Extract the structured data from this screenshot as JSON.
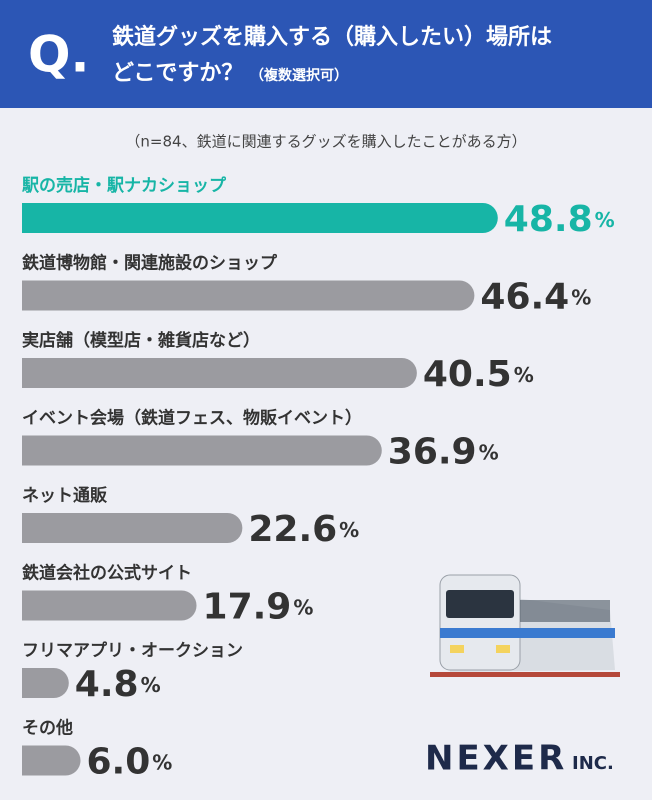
{
  "chart_data": {
    "type": "bar",
    "question_mark": "Q.",
    "title": [
      "鉄道グッズを購入する（購入したい）場所は",
      "どこですか？"
    ],
    "title_note": "（複数選択可）",
    "subtitle": "（n=84、鉄道に関連するグッズを購入したことがある方）",
    "categories": [
      "駅の売店・駅ナカショップ",
      "鉄道博物館・関連施設のショップ",
      "実店舗（模型店・雑貨店など）",
      "イベント会場（鉄道フェス、物販イベント）",
      "ネット通販",
      "鉄道会社の公式サイト",
      "フリマアプリ・オークション",
      "その他"
    ],
    "values": [
      48.8,
      46.4,
      40.5,
      36.9,
      22.6,
      17.9,
      4.8,
      6.0
    ],
    "value_labels": [
      "48.8%",
      "46.4%",
      "40.5%",
      "36.9%",
      "22.6%",
      "17.9%",
      "4.8%",
      "6.0%"
    ],
    "colors": [
      "#17b5a6",
      "#9b9ba0",
      "#9b9ba0",
      "#9b9ba0",
      "#9b9ba0",
      "#9b9ba0",
      "#9b9ba0",
      "#9b9ba0"
    ],
    "brand": "NEXER",
    "brand_suffix": "INC."
  }
}
